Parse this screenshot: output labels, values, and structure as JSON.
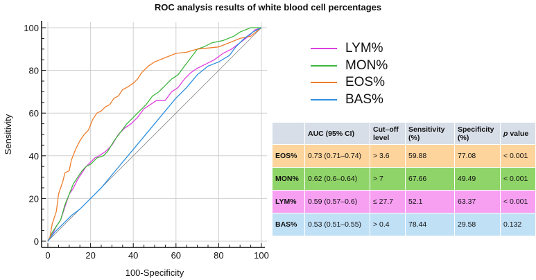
{
  "chart_data": {
    "type": "line",
    "title": "ROC analysis results of white blood cell percentages",
    "xlabel": "100-Specificity",
    "ylabel": "Sensitivity",
    "xlim": [
      0,
      100
    ],
    "ylim": [
      0,
      100
    ],
    "xticks": [
      "0",
      "20",
      "40",
      "60",
      "80",
      "100"
    ],
    "yticks": [
      "0",
      "20",
      "40",
      "60",
      "80",
      "100"
    ],
    "grid": true,
    "legend_position": "right",
    "reference_line": {
      "x": [
        0,
        100
      ],
      "y": [
        0,
        100
      ],
      "color": "#888888"
    },
    "series": [
      {
        "name": "LYM%",
        "color": "#e040e0",
        "x": [
          0,
          2,
          4,
          6,
          8,
          10,
          12,
          14,
          16,
          18,
          20,
          22,
          24,
          27,
          30,
          33,
          36,
          39,
          42,
          45,
          48,
          51,
          55,
          58,
          61,
          64,
          67,
          70,
          74,
          78,
          82,
          86,
          90,
          94,
          97,
          100
        ],
        "y": [
          0,
          3,
          7,
          10,
          16,
          22,
          25,
          29,
          32,
          35,
          37,
          39,
          40,
          42,
          45,
          50,
          53,
          55,
          58,
          62,
          64,
          66,
          66,
          70,
          72,
          76,
          79,
          81,
          83,
          85,
          88,
          90,
          93,
          96,
          99,
          100
        ]
      },
      {
        "name": "MON%",
        "color": "#3cb83c",
        "x": [
          0,
          2,
          4,
          6,
          8,
          10,
          12,
          14,
          16,
          18,
          20,
          23,
          26,
          28,
          31,
          34,
          37,
          40,
          43,
          46,
          49,
          52,
          55,
          58,
          61,
          64,
          67,
          70,
          73,
          77,
          82,
          87,
          90,
          95,
          100
        ],
        "y": [
          0,
          4,
          7,
          10,
          17,
          22,
          27,
          30,
          33,
          35,
          36,
          39,
          40,
          42,
          47,
          51,
          55,
          58,
          61,
          64,
          68,
          70,
          73,
          76,
          78,
          82,
          86,
          90,
          91,
          93,
          94,
          96,
          98,
          100,
          100
        ]
      },
      {
        "name": "EOS%",
        "color": "#f07d2a",
        "x": [
          0,
          1,
          2,
          4,
          5,
          7,
          8,
          10,
          11,
          13,
          15,
          17,
          19,
          21,
          23,
          25,
          27,
          29,
          31,
          33,
          35,
          37,
          40,
          42,
          44,
          47,
          50,
          55,
          60,
          65,
          70,
          75,
          80,
          85,
          90,
          95,
          100
        ],
        "y": [
          0,
          2,
          8,
          14,
          22,
          28,
          32,
          33,
          38,
          43,
          47,
          50,
          52,
          57,
          60,
          61,
          63,
          64,
          67,
          68,
          71,
          72,
          74,
          76,
          79,
          82,
          84,
          86,
          88,
          88.5,
          90,
          90.5,
          91,
          93,
          95,
          96,
          100
        ]
      },
      {
        "name": "BAS%",
        "color": "#2a8ee0",
        "x": [
          0,
          3,
          7,
          11,
          15,
          20,
          25,
          30,
          35,
          40,
          45,
          50,
          55,
          60,
          65,
          70,
          75,
          80,
          85,
          88,
          92,
          96,
          100
        ],
        "y": [
          0,
          4,
          8,
          12,
          15,
          20,
          25,
          31,
          37,
          43,
          49,
          55,
          61,
          67,
          72,
          78,
          82,
          84,
          87,
          91,
          95,
          98,
          100
        ]
      }
    ]
  },
  "table": {
    "headers": [
      "",
      "AUC (95% CI)",
      "Cut–off level",
      "Sensitivity (%)",
      "Specificity (%)",
      "p value"
    ],
    "rows": [
      {
        "label": "EOS%",
        "auc": "0.73 (0.71–0.74)",
        "cutoff": "> 3.6",
        "sensitivity": "59.88",
        "specificity": "77.08",
        "p": "< 0.001",
        "color": "#fcd49c"
      },
      {
        "label": "MON%",
        "auc": "0.62 (0.6–0.64)",
        "cutoff": "> 7",
        "sensitivity": "67.66",
        "specificity": "49.49",
        "p": "< 0.001",
        "color": "#8fd468"
      },
      {
        "label": "LYM%",
        "auc": "0.59 (0.57–0.6)",
        "cutoff": "≤ 27.7",
        "sensitivity": "52.1",
        "specificity": "63.37",
        "p": "< 0.001",
        "color": "#f7a0f2"
      },
      {
        "label": "BAS%",
        "auc": "0.53 (0.51–0.55)",
        "cutoff": "> 0.4",
        "sensitivity": "78.44",
        "specificity": "29.58",
        "p": "0.132",
        "color": "#c0e0f6"
      }
    ]
  }
}
